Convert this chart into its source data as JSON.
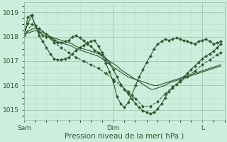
{
  "bg_color": "#cceedd",
  "grid_color_major": "#99bbaa",
  "grid_color_minor": "#bbddcc",
  "line_color": "#2d5a2d",
  "xlabel": "Pression niveau de la mer( hPa )",
  "xlabel_fontsize": 7.5,
  "tick_fontsize": 6.5,
  "ylim": [
    1014.6,
    1019.4
  ],
  "yticks": [
    1015,
    1016,
    1017,
    1018,
    1019
  ],
  "total_hours": 54,
  "xtick_positions": [
    0,
    24,
    48
  ],
  "xtick_labels": [
    "Sam",
    "Dim",
    "L"
  ],
  "series": [
    {
      "x": [
        0,
        1,
        2,
        3,
        4,
        5,
        6,
        7,
        8,
        9,
        10,
        11,
        12,
        13,
        14,
        15,
        16,
        17,
        18,
        19,
        20,
        21,
        22,
        23,
        24,
        25,
        26,
        27,
        28,
        29,
        30,
        31,
        32,
        33,
        34,
        35,
        36,
        37,
        38,
        39,
        40,
        41,
        42,
        43,
        44,
        45,
        46,
        47,
        48,
        49,
        50,
        51,
        52,
        53
      ],
      "y": [
        1018.1,
        1018.55,
        1018.85,
        1018.45,
        1018.2,
        1018.05,
        1018.0,
        1017.95,
        1017.85,
        1017.75,
        1017.75,
        1017.8,
        1017.85,
        1018.0,
        1018.05,
        1017.95,
        1017.85,
        1017.7,
        1017.6,
        1017.45,
        1017.35,
        1017.25,
        1016.9,
        1016.55,
        1016.15,
        1015.55,
        1015.25,
        1015.1,
        1015.3,
        1015.6,
        1016.0,
        1016.35,
        1016.65,
        1016.95,
        1017.2,
        1017.5,
        1017.7,
        1017.8,
        1017.9,
        1017.85,
        1017.9,
        1017.95,
        1017.9,
        1017.85,
        1017.8,
        1017.75,
        1017.7,
        1017.8,
        1017.85,
        1017.9,
        1017.8,
        1017.7,
        1017.75,
        1017.8
      ],
      "marker": true,
      "linestyle": "-"
    },
    {
      "x": [
        0,
        1,
        2,
        3,
        4,
        5,
        6,
        7,
        8,
        9,
        10,
        11,
        12,
        13,
        14,
        15,
        16,
        17,
        18,
        19,
        20,
        21,
        22,
        23,
        24,
        25,
        26,
        27,
        28,
        29,
        30,
        31,
        32,
        33,
        34,
        35,
        36,
        37,
        38,
        39,
        40,
        41,
        42,
        43,
        44,
        45,
        46,
        47,
        48,
        49,
        50,
        51,
        52,
        53
      ],
      "y": [
        1018.1,
        1018.8,
        1018.9,
        1018.45,
        1018.05,
        1017.8,
        1017.55,
        1017.3,
        1017.1,
        1017.05,
        1017.05,
        1017.1,
        1017.15,
        1017.3,
        1017.45,
        1017.55,
        1017.65,
        1017.75,
        1017.8,
        1017.85,
        1017.6,
        1017.35,
        1017.1,
        1016.9,
        1016.65,
        1016.35,
        1016.05,
        1015.85,
        1015.65,
        1015.45,
        1015.25,
        1015.1,
        1014.95,
        1014.9,
        1014.85,
        1014.9,
        1015.05,
        1015.25,
        1015.5,
        1015.75,
        1015.9,
        1016.05,
        1016.2,
        1016.35,
        1016.5,
        1016.65,
        1016.8,
        1016.95,
        1017.1,
        1017.2,
        1017.3,
        1017.4,
        1017.55,
        1017.7
      ],
      "marker": true,
      "linestyle": "-"
    },
    {
      "x": [
        0,
        1,
        2,
        3,
        4,
        5,
        6,
        7,
        8,
        9,
        10,
        11,
        12,
        13,
        14,
        15,
        16,
        17,
        18,
        19,
        20,
        21,
        22,
        23,
        24,
        25,
        26,
        27,
        28,
        29,
        30,
        31,
        32,
        33,
        34,
        35,
        36,
        37,
        38,
        39,
        40,
        41,
        42,
        43,
        44,
        45,
        46,
        47,
        48,
        49,
        50,
        51,
        52,
        53
      ],
      "y": [
        1018.1,
        1018.15,
        1018.2,
        1018.25,
        1018.2,
        1018.15,
        1018.1,
        1018.0,
        1017.95,
        1017.9,
        1017.85,
        1017.8,
        1017.75,
        1017.7,
        1017.6,
        1017.55,
        1017.5,
        1017.45,
        1017.4,
        1017.35,
        1017.3,
        1017.2,
        1017.1,
        1017.0,
        1016.9,
        1016.8,
        1016.65,
        1016.55,
        1016.45,
        1016.35,
        1016.25,
        1016.15,
        1016.05,
        1015.95,
        1015.85,
        1015.85,
        1015.9,
        1015.95,
        1016.0,
        1016.1,
        1016.15,
        1016.2,
        1016.25,
        1016.3,
        1016.35,
        1016.4,
        1016.45,
        1016.5,
        1016.55,
        1016.6,
        1016.65,
        1016.7,
        1016.75,
        1016.8
      ],
      "marker": false,
      "linestyle": "-"
    },
    {
      "x": [
        0,
        1,
        2,
        3,
        4,
        5,
        6,
        7,
        8,
        9,
        10,
        11,
        12,
        13,
        14,
        15,
        16,
        17,
        18,
        19,
        20,
        21,
        22,
        23,
        24,
        25,
        26,
        27,
        28,
        29,
        30,
        31,
        32,
        33,
        34,
        35,
        36,
        37,
        38,
        39,
        40,
        41,
        42,
        43,
        44,
        45,
        46,
        47,
        48,
        49,
        50,
        51,
        52,
        53
      ],
      "y": [
        1018.1,
        1018.2,
        1018.3,
        1018.35,
        1018.3,
        1018.2,
        1018.1,
        1018.0,
        1017.9,
        1017.8,
        1017.75,
        1017.7,
        1017.65,
        1017.6,
        1017.5,
        1017.45,
        1017.4,
        1017.35,
        1017.3,
        1017.25,
        1017.2,
        1017.1,
        1017.0,
        1016.9,
        1016.75,
        1016.65,
        1016.55,
        1016.45,
        1016.35,
        1016.3,
        1016.25,
        1016.2,
        1016.15,
        1016.1,
        1016.05,
        1016.0,
        1016.0,
        1016.05,
        1016.1,
        1016.15,
        1016.2,
        1016.25,
        1016.3,
        1016.35,
        1016.4,
        1016.45,
        1016.5,
        1016.55,
        1016.6,
        1016.65,
        1016.7,
        1016.75,
        1016.8,
        1016.85
      ],
      "marker": false,
      "linestyle": "-"
    },
    {
      "x": [
        0,
        2,
        4,
        6,
        8,
        10,
        12,
        14,
        16,
        18,
        20,
        22,
        24,
        26,
        28,
        30,
        32,
        34,
        36,
        38,
        40,
        42,
        44,
        46,
        48,
        50,
        52,
        53
      ],
      "y": [
        1018.05,
        1018.5,
        1018.35,
        1018.1,
        1017.75,
        1017.55,
        1017.35,
        1017.15,
        1017.0,
        1016.85,
        1016.7,
        1016.5,
        1016.25,
        1016.0,
        1015.75,
        1015.45,
        1015.15,
        1015.15,
        1015.35,
        1015.65,
        1015.95,
        1016.15,
        1016.35,
        1016.6,
        1016.85,
        1017.05,
        1017.25,
        1017.35
      ],
      "marker": true,
      "linestyle": "--"
    }
  ]
}
